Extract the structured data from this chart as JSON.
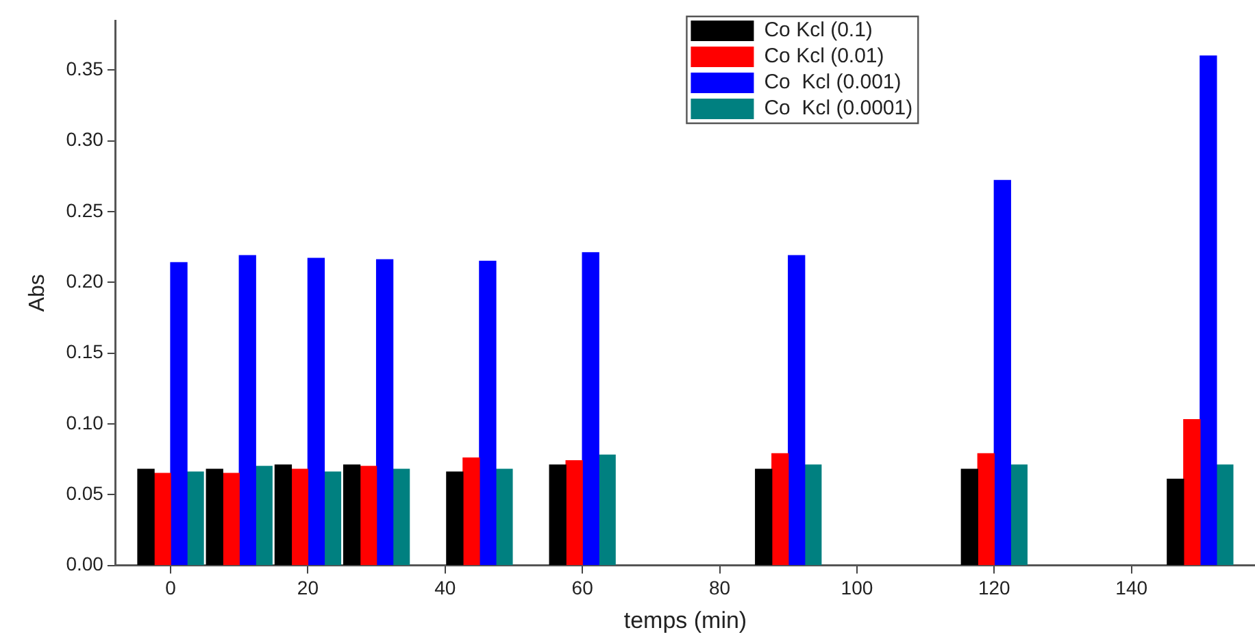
{
  "chart_data": {
    "type": "bar",
    "xlabel": "temps (min)",
    "ylabel": "Abs",
    "x": [
      0,
      10,
      20,
      30,
      45,
      60,
      90,
      120,
      150
    ],
    "series": [
      {
        "name": "Co Kcl (0.1)",
        "color": "#000000",
        "values": [
          0.068,
          0.068,
          0.071,
          0.071,
          0.066,
          0.071,
          0.068,
          0.068,
          0.061
        ]
      },
      {
        "name": "Co Kcl (0.01)",
        "color": "#ff0000",
        "values": [
          0.065,
          0.065,
          0.068,
          0.07,
          0.076,
          0.074,
          0.079,
          0.079,
          0.103
        ]
      },
      {
        "name": "Co  Kcl (0.001)",
        "color": "#0000ff",
        "values": [
          0.214,
          0.219,
          0.217,
          0.216,
          0.215,
          0.221,
          0.219,
          0.272,
          0.36
        ]
      },
      {
        "name": "Co  Kcl (0.0001)",
        "color": "#008080",
        "values": [
          0.066,
          0.07,
          0.066,
          0.068,
          0.068,
          0.078,
          0.071,
          0.071,
          0.071
        ]
      }
    ],
    "xlim": [
      -8,
      158
    ],
    "xticks": [
      0,
      20,
      40,
      60,
      80,
      100,
      120,
      140
    ],
    "ylim": [
      0,
      0.385
    ],
    "yticks": [
      {
        "value": 0,
        "label": "0.00"
      },
      {
        "value": 0.05,
        "label": "0.05"
      },
      {
        "value": 0.1,
        "label": "0.10"
      },
      {
        "value": 0.15,
        "label": "0.15"
      },
      {
        "value": 0.2,
        "label": "0.20"
      },
      {
        "value": 0.25,
        "label": "0.25"
      },
      {
        "value": 0.3,
        "label": "0.30"
      },
      {
        "value": 0.35,
        "label": "0.35"
      }
    ],
    "grid": false,
    "legend": "top"
  }
}
